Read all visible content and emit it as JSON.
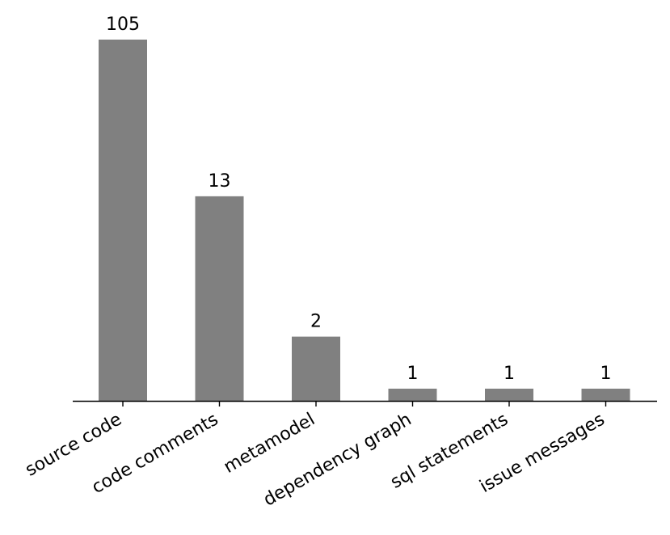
{
  "chart_data": {
    "type": "bar",
    "scale": "log",
    "categories": [
      "source code",
      "code comments",
      "metamodel",
      "dependency graph",
      "sql statements",
      "issue messages"
    ],
    "values": [
      105,
      13,
      2,
      1,
      1,
      1
    ],
    "value_labels": [
      "105",
      "13",
      "2",
      "1",
      "1",
      "1"
    ],
    "title": "",
    "xlabel": "",
    "ylabel": "",
    "ylim": [
      0.85,
      130
    ],
    "y_axis_visible": false,
    "grid": false,
    "bar_color": "#808080"
  }
}
